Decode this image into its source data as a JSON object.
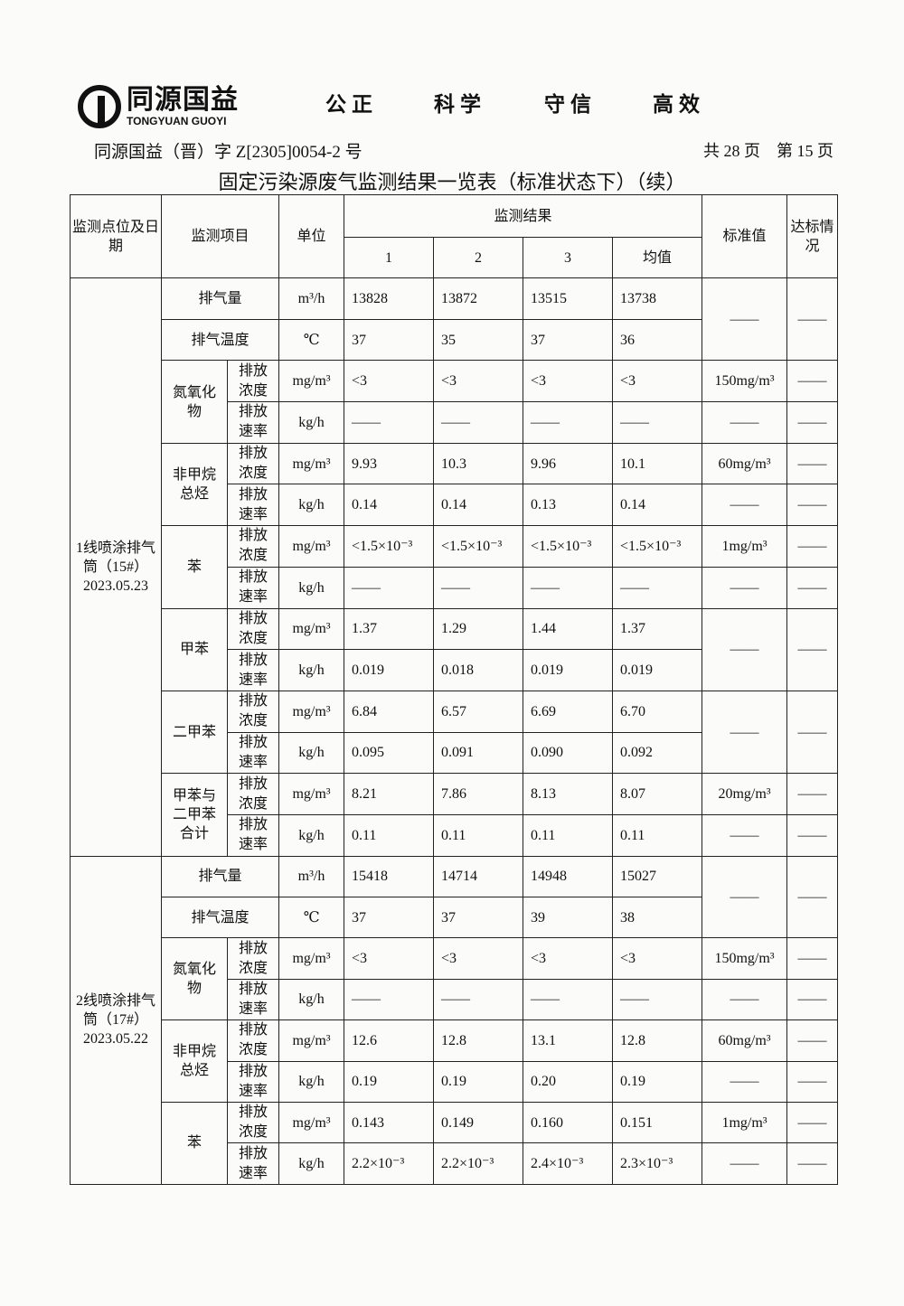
{
  "header": {
    "logo_cn": "同源国益",
    "logo_en": "TONGYUAN GUOYI",
    "motto": [
      "公正",
      "科学",
      "守信",
      "高效"
    ],
    "doc_number": "同源国益（晋）字 Z[2305]0054-2 号",
    "page_info": "共 28 页　第 15 页",
    "title": "固定污染源废气监测结果一览表（标准状态下）（续）"
  },
  "table": {
    "headers": {
      "location": "监测点位及日期",
      "item": "监测项目",
      "unit": "单位",
      "results": "监测结果",
      "runs": [
        "1",
        "2",
        "3",
        "均值"
      ],
      "standard": "标准值",
      "compliance": "达标情况"
    },
    "sections": [
      {
        "location": "1线喷涂排气筒（15#）2023.05.23",
        "groups": [
          {
            "name": "排气量",
            "rows": [
              {
                "sub": null,
                "unit": "m³/h",
                "values": [
                  "13828",
                  "13872",
                  "13515",
                  "13738"
                ],
                "standard": "——",
                "compliance": "——"
              }
            ]
          },
          {
            "name": "排气温度",
            "rows": [
              {
                "sub": null,
                "unit": "℃",
                "values": [
                  "37",
                  "35",
                  "37",
                  "36"
                ],
                "standard": null,
                "compliance": null
              }
            ]
          },
          {
            "name": "氮氧化物",
            "rows": [
              {
                "sub": "排放浓度",
                "unit": "mg/m³",
                "values": [
                  "<3",
                  "<3",
                  "<3",
                  "<3"
                ],
                "standard": "150mg/m³",
                "compliance": "——"
              },
              {
                "sub": "排放速率",
                "unit": "kg/h",
                "values": [
                  "——",
                  "——",
                  "——",
                  "——"
                ],
                "standard": "——",
                "compliance": "——"
              }
            ]
          },
          {
            "name": "非甲烷总烃",
            "rows": [
              {
                "sub": "排放浓度",
                "unit": "mg/m³",
                "values": [
                  "9.93",
                  "10.3",
                  "9.96",
                  "10.1"
                ],
                "standard": "60mg/m³",
                "compliance": "——"
              },
              {
                "sub": "排放速率",
                "unit": "kg/h",
                "values": [
                  "0.14",
                  "0.14",
                  "0.13",
                  "0.14"
                ],
                "standard": "——",
                "compliance": "——"
              }
            ]
          },
          {
            "name": "苯",
            "rows": [
              {
                "sub": "排放浓度",
                "unit": "mg/m³",
                "values": [
                  "<1.5×10⁻³",
                  "<1.5×10⁻³",
                  "<1.5×10⁻³",
                  "<1.5×10⁻³"
                ],
                "standard": "1mg/m³",
                "compliance": "——"
              },
              {
                "sub": "排放速率",
                "unit": "kg/h",
                "values": [
                  "——",
                  "——",
                  "——",
                  "——"
                ],
                "standard": "——",
                "compliance": "——"
              }
            ]
          },
          {
            "name": "甲苯",
            "rows": [
              {
                "sub": "排放浓度",
                "unit": "mg/m³",
                "values": [
                  "1.37",
                  "1.29",
                  "1.44",
                  "1.37"
                ],
                "standard": "——",
                "compliance": "——"
              },
              {
                "sub": "排放速率",
                "unit": "kg/h",
                "values": [
                  "0.019",
                  "0.018",
                  "0.019",
                  "0.019"
                ],
                "standard": null,
                "compliance": null
              }
            ]
          },
          {
            "name": "二甲苯",
            "rows": [
              {
                "sub": "排放浓度",
                "unit": "mg/m³",
                "values": [
                  "6.84",
                  "6.57",
                  "6.69",
                  "6.70"
                ],
                "standard": "——",
                "compliance": "——"
              },
              {
                "sub": "排放速率",
                "unit": "kg/h",
                "values": [
                  "0.095",
                  "0.091",
                  "0.090",
                  "0.092"
                ],
                "standard": null,
                "compliance": null
              }
            ]
          },
          {
            "name": "甲苯与二甲苯合计",
            "rows": [
              {
                "sub": "排放浓度",
                "unit": "mg/m³",
                "values": [
                  "8.21",
                  "7.86",
                  "8.13",
                  "8.07"
                ],
                "standard": "20mg/m³",
                "compliance": "——"
              },
              {
                "sub": "排放速率",
                "unit": "kg/h",
                "values": [
                  "0.11",
                  "0.11",
                  "0.11",
                  "0.11"
                ],
                "standard": "——",
                "compliance": "——"
              }
            ]
          }
        ]
      },
      {
        "location": "2线喷涂排气筒（17#）2023.05.22",
        "groups": [
          {
            "name": "排气量",
            "rows": [
              {
                "sub": null,
                "unit": "m³/h",
                "values": [
                  "15418",
                  "14714",
                  "14948",
                  "15027"
                ],
                "standard": "——",
                "compliance": "——"
              }
            ]
          },
          {
            "name": "排气温度",
            "rows": [
              {
                "sub": null,
                "unit": "℃",
                "values": [
                  "37",
                  "37",
                  "39",
                  "38"
                ],
                "standard": null,
                "compliance": null
              }
            ]
          },
          {
            "name": "氮氧化物",
            "rows": [
              {
                "sub": "排放浓度",
                "unit": "mg/m³",
                "values": [
                  "<3",
                  "<3",
                  "<3",
                  "<3"
                ],
                "standard": "150mg/m³",
                "compliance": "——"
              },
              {
                "sub": "排放速率",
                "unit": "kg/h",
                "values": [
                  "——",
                  "——",
                  "——",
                  "——"
                ],
                "standard": "——",
                "compliance": "——"
              }
            ]
          },
          {
            "name": "非甲烷总烃",
            "rows": [
              {
                "sub": "排放浓度",
                "unit": "mg/m³",
                "values": [
                  "12.6",
                  "12.8",
                  "13.1",
                  "12.8"
                ],
                "standard": "60mg/m³",
                "compliance": "——"
              },
              {
                "sub": "排放速率",
                "unit": "kg/h",
                "values": [
                  "0.19",
                  "0.19",
                  "0.20",
                  "0.19"
                ],
                "standard": "——",
                "compliance": "——"
              }
            ]
          },
          {
            "name": "苯",
            "rows": [
              {
                "sub": "排放浓度",
                "unit": "mg/m³",
                "values": [
                  "0.143",
                  "0.149",
                  "0.160",
                  "0.151"
                ],
                "standard": "1mg/m³",
                "compliance": "——"
              },
              {
                "sub": "排放速率",
                "unit": "kg/h",
                "values": [
                  "2.2×10⁻³",
                  "2.2×10⁻³",
                  "2.4×10⁻³",
                  "2.3×10⁻³"
                ],
                "standard": "——",
                "compliance": "——"
              }
            ]
          }
        ]
      }
    ]
  }
}
